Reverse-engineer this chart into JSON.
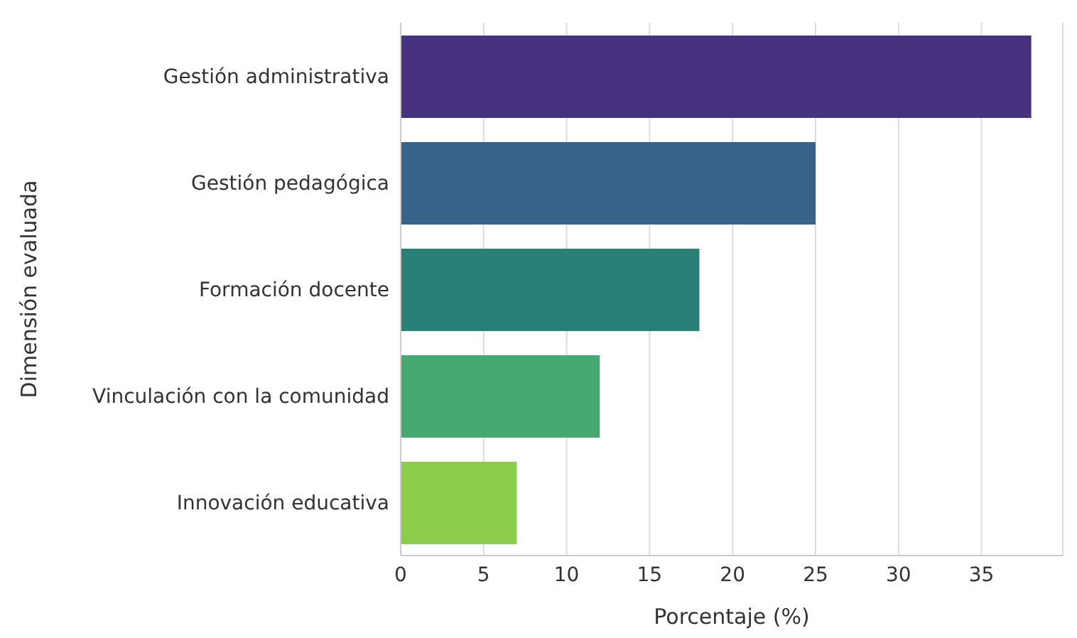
{
  "chart_data": {
    "type": "bar",
    "orientation": "horizontal",
    "xlabel": "Porcentaje (%)",
    "ylabel": "Dimensión evaluada",
    "categories": [
      "Gestión administrativa",
      "Gestión pedagógica",
      "Formación docente",
      "Vinculación con la comunidad",
      "Innovación educativa"
    ],
    "values": [
      38,
      25,
      18,
      12,
      7
    ],
    "colors": [
      "#46327e",
      "#37628a",
      "#2a8079",
      "#47a870",
      "#8bcc4b"
    ],
    "xlim": [
      0,
      39.9
    ],
    "xticks": [
      0,
      5,
      10,
      15,
      20,
      25,
      30,
      35
    ],
    "grid": "x"
  }
}
